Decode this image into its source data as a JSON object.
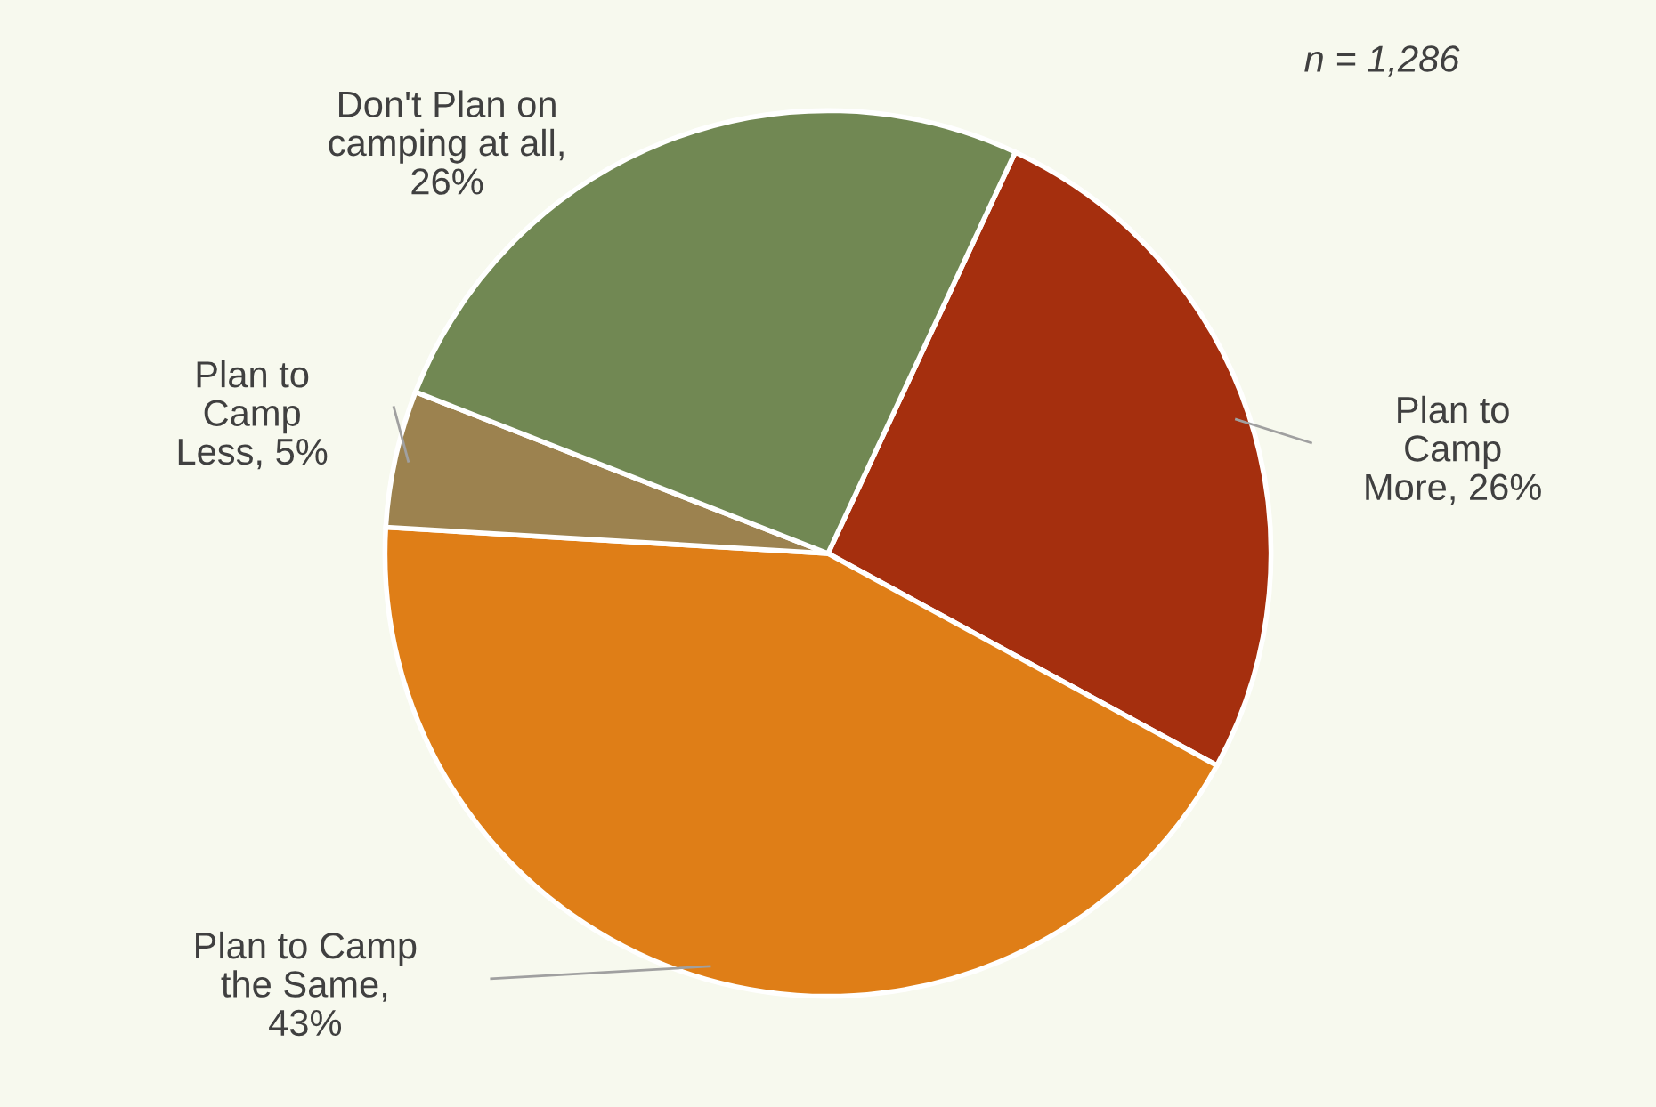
{
  "chart_data": {
    "type": "pie",
    "categories": [
      "Plan to Camp More, 26%",
      "Plan to Camp the Same, 43%",
      "Plan to Camp Less, 5%",
      "Don't Plan on camping at all, 26%"
    ],
    "values": [
      26,
      43,
      5,
      26
    ],
    "colors": [
      "#a52f0e",
      "#df7e17",
      "#9c824f",
      "#718853"
    ],
    "annotations": [
      "n = 1,286"
    ]
  }
}
